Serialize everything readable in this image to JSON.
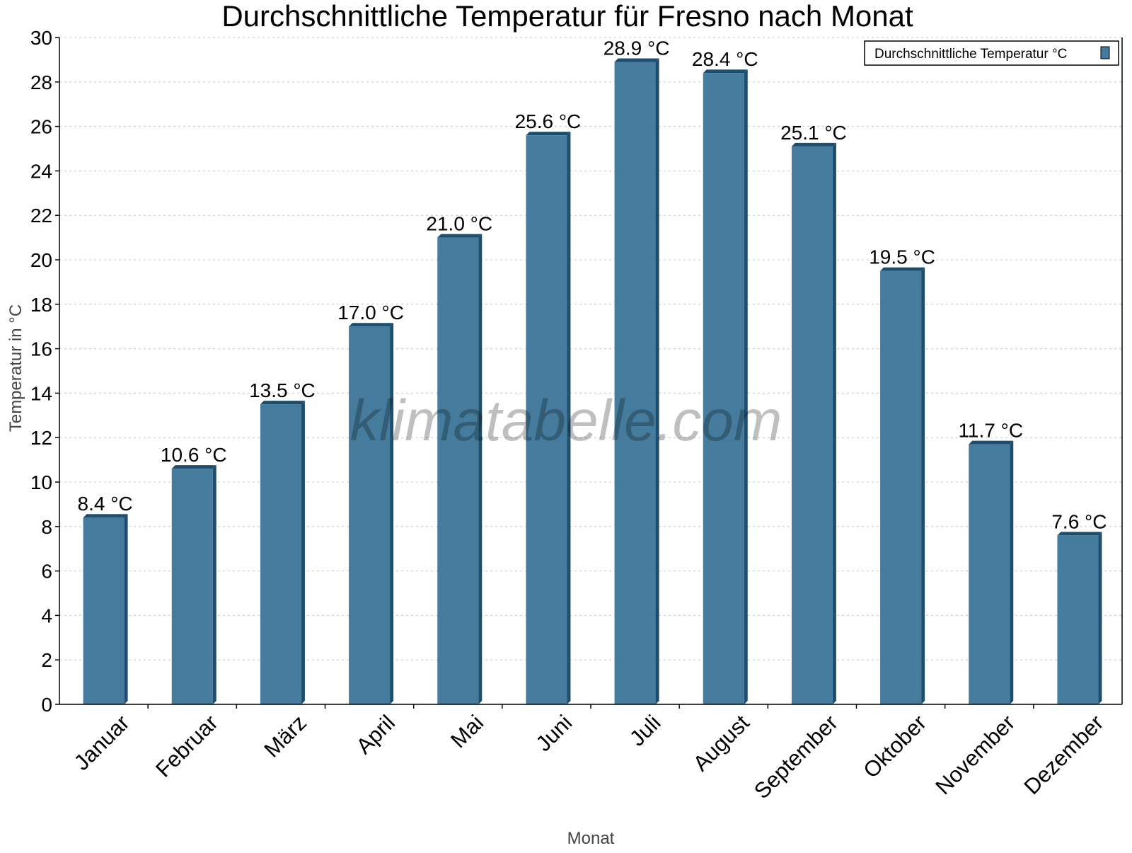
{
  "chart_data": {
    "type": "bar",
    "title": "Durchschnittliche Temperatur für Fresno nach Monat",
    "xlabel": "Monat",
    "ylabel": "Temperatur in °C",
    "categories": [
      "Januar",
      "Februar",
      "März",
      "April",
      "Mai",
      "Juni",
      "Juli",
      "August",
      "September",
      "Oktober",
      "November",
      "Dezember"
    ],
    "series": [
      {
        "name": "Durchschnittliche Temperatur °C",
        "values": [
          8.4,
          10.6,
          13.5,
          17.0,
          21.0,
          25.6,
          28.9,
          28.4,
          25.1,
          19.5,
          11.7,
          7.6
        ],
        "color": "#457b9d",
        "side_color": "#1d4e6e"
      }
    ],
    "data_labels": [
      "8.4 °C",
      "10.6 °C",
      "13.5 °C",
      "17.0 °C",
      "21.0 °C",
      "25.6 °C",
      "28.9 °C",
      "28.4 °C",
      "25.1 °C",
      "19.5 °C",
      "11.7 °C",
      "7.6 °C"
    ],
    "ylim": [
      0,
      30
    ],
    "yticks": [
      0,
      2,
      4,
      6,
      8,
      10,
      12,
      14,
      16,
      18,
      20,
      22,
      24,
      26,
      28,
      30
    ],
    "grid": true,
    "legend_position": "top-right",
    "watermark": "klimatabelle.com"
  }
}
